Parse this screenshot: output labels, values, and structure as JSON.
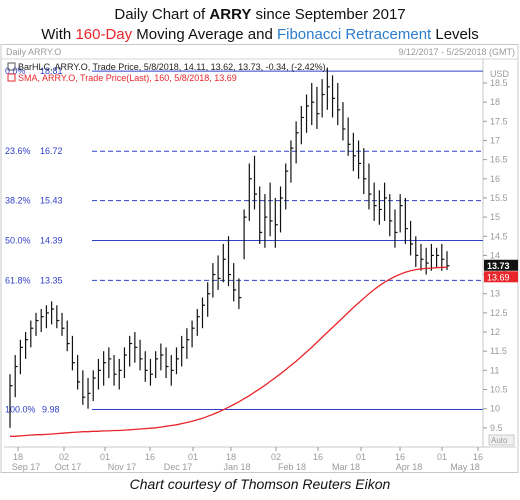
{
  "header": {
    "line1_pre": "Daily Chart of ",
    "line1_bold": "ARRY",
    "line1_post": " since September 2017",
    "line2_pre": "With ",
    "line2_red": "160-Day",
    "line2_mid": " Moving Average and ",
    "line2_blue": "Fibonacci Retracement",
    "line2_post": " Levels"
  },
  "panel": {
    "symbol_label": "Daily ARRY.O",
    "date_range": "9/12/2017 - 5/25/2018 (GMT)",
    "legend_bar": "BarHLC, ARRY.O, Trade Price, 5/8/2018, 14.11, 13.62, 13.73, -0.34, (-2.42%),",
    "legend_sma": "SMA, ARRY.O, Trade Price(Last), 160, 5/8/2018, 13.69",
    "currency": "USD",
    "auto_label": "Auto",
    "last_price_tag": "13.73",
    "sma_tag": "13.69"
  },
  "colors": {
    "price_bars": "#111111",
    "sma": "#e8262b",
    "fib": "#3040c8",
    "last_tag_bg": "#111111",
    "sma_tag_bg": "#e8262b",
    "title_red": "#e8262b",
    "title_blue": "#2a7ccc"
  },
  "caption": "Chart courtesy of Thomson Reuters Eikon",
  "chart_data": {
    "type": "line",
    "title": "Daily Chart of ARRY since September 2017",
    "y_ticks": [
      "9.5",
      "10",
      "10.5",
      "11",
      "11.5",
      "12",
      "12.5",
      "13",
      "13.5",
      "14",
      "14.5",
      "15",
      "15.5",
      "16",
      "16.5",
      "17",
      "17.5",
      "18",
      "18.5"
    ],
    "ylim": [
      9,
      19.1
    ],
    "x_day_labels": [
      "18",
      "02",
      "16",
      "01",
      "16",
      "01",
      "18",
      "02",
      "16",
      "01",
      "16",
      "01",
      "16",
      "01",
      "16"
    ],
    "x_month_labels": [
      "Sep 17",
      "Oct 17",
      "Nov 17",
      "Dec 17",
      "Jan 18",
      "Feb 18",
      "Mar 18",
      "Apr 18",
      "May 18"
    ],
    "fib_levels": [
      {
        "label": "0.0%",
        "value": 18.81,
        "value_label": "18.81",
        "style": "solid"
      },
      {
        "label": "23.6%",
        "value": 16.72,
        "value_label": "16.72",
        "style": "dashed"
      },
      {
        "label": "38.2%",
        "value": 15.43,
        "value_label": "15.43",
        "style": "dashed"
      },
      {
        "label": "50.0%",
        "value": 14.39,
        "value_label": "14.39",
        "style": "solid"
      },
      {
        "label": "61.8%",
        "value": 13.35,
        "value_label": "13.35",
        "style": "dashed"
      },
      {
        "label": "100.0%",
        "value": 9.98,
        "value_label": "9.98",
        "style": "solid"
      }
    ],
    "series": [
      {
        "name": "ARRY.O Trade Price",
        "kind": "hlc_bars",
        "points": [
          {
            "h": 10.9,
            "l": 9.5,
            "c": 10.6
          },
          {
            "h": 11.4,
            "l": 10.3,
            "c": 11.1
          },
          {
            "h": 11.8,
            "l": 10.9,
            "c": 11.6
          },
          {
            "h": 12.0,
            "l": 11.3,
            "c": 11.8
          },
          {
            "h": 12.3,
            "l": 11.6,
            "c": 12.1
          },
          {
            "h": 12.5,
            "l": 11.9,
            "c": 12.3
          },
          {
            "h": 12.6,
            "l": 12.0,
            "c": 12.4
          },
          {
            "h": 12.7,
            "l": 12.1,
            "c": 12.5
          },
          {
            "h": 12.8,
            "l": 12.2,
            "c": 12.6
          },
          {
            "h": 12.7,
            "l": 12.1,
            "c": 12.3
          },
          {
            "h": 12.5,
            "l": 11.9,
            "c": 12.1
          },
          {
            "h": 12.3,
            "l": 11.5,
            "c": 11.7
          },
          {
            "h": 11.9,
            "l": 11.0,
            "c": 11.2
          },
          {
            "h": 11.4,
            "l": 10.5,
            "c": 10.7
          },
          {
            "h": 11.0,
            "l": 10.1,
            "c": 10.3
          },
          {
            "h": 10.8,
            "l": 10.0,
            "c": 10.4
          },
          {
            "h": 11.0,
            "l": 10.2,
            "c": 10.8
          },
          {
            "h": 11.3,
            "l": 10.5,
            "c": 11.0
          },
          {
            "h": 11.5,
            "l": 10.6,
            "c": 11.2
          },
          {
            "h": 11.6,
            "l": 10.8,
            "c": 11.3
          },
          {
            "h": 11.4,
            "l": 10.6,
            "c": 10.9
          },
          {
            "h": 11.3,
            "l": 10.5,
            "c": 11.0
          },
          {
            "h": 11.6,
            "l": 10.8,
            "c": 11.4
          },
          {
            "h": 11.9,
            "l": 11.1,
            "c": 11.7
          },
          {
            "h": 12.0,
            "l": 11.2,
            "c": 11.6
          },
          {
            "h": 11.8,
            "l": 11.0,
            "c": 11.3
          },
          {
            "h": 11.5,
            "l": 10.7,
            "c": 11.0
          },
          {
            "h": 11.3,
            "l": 10.6,
            "c": 10.9
          },
          {
            "h": 11.5,
            "l": 10.8,
            "c": 11.3
          },
          {
            "h": 11.7,
            "l": 11.0,
            "c": 11.4
          },
          {
            "h": 11.6,
            "l": 10.8,
            "c": 11.1
          },
          {
            "h": 11.4,
            "l": 10.6,
            "c": 11.0
          },
          {
            "h": 11.6,
            "l": 10.9,
            "c": 11.3
          },
          {
            "h": 11.9,
            "l": 11.1,
            "c": 11.6
          },
          {
            "h": 12.1,
            "l": 11.3,
            "c": 11.8
          },
          {
            "h": 12.3,
            "l": 11.6,
            "c": 12.1
          },
          {
            "h": 12.6,
            "l": 11.9,
            "c": 12.4
          },
          {
            "h": 12.9,
            "l": 12.1,
            "c": 12.7
          },
          {
            "h": 13.3,
            "l": 12.4,
            "c": 13.0
          },
          {
            "h": 13.8,
            "l": 12.9,
            "c": 13.5
          },
          {
            "h": 14.0,
            "l": 13.1,
            "c": 13.4
          },
          {
            "h": 14.3,
            "l": 13.3,
            "c": 13.9
          },
          {
            "h": 14.5,
            "l": 13.2,
            "c": 13.5
          },
          {
            "h": 13.8,
            "l": 12.8,
            "c": 13.1
          },
          {
            "h": 13.4,
            "l": 12.6,
            "c": 12.9
          },
          {
            "h": 15.2,
            "l": 13.9,
            "c": 15.0
          },
          {
            "h": 16.4,
            "l": 14.9,
            "c": 16.0
          },
          {
            "h": 16.6,
            "l": 15.2,
            "c": 15.6
          },
          {
            "h": 15.8,
            "l": 14.3,
            "c": 14.6
          },
          {
            "h": 15.6,
            "l": 14.2,
            "c": 15.0
          },
          {
            "h": 15.9,
            "l": 14.5,
            "c": 14.9
          },
          {
            "h": 15.5,
            "l": 14.2,
            "c": 14.8
          },
          {
            "h": 15.8,
            "l": 14.6,
            "c": 15.5
          },
          {
            "h": 16.4,
            "l": 15.2,
            "c": 16.2
          },
          {
            "h": 17.0,
            "l": 15.9,
            "c": 16.8
          },
          {
            "h": 17.5,
            "l": 16.4,
            "c": 17.2
          },
          {
            "h": 17.9,
            "l": 16.9,
            "c": 17.6
          },
          {
            "h": 18.2,
            "l": 17.2,
            "c": 17.9
          },
          {
            "h": 18.5,
            "l": 17.4,
            "c": 18.0
          },
          {
            "h": 18.4,
            "l": 17.3,
            "c": 17.7
          },
          {
            "h": 18.6,
            "l": 17.6,
            "c": 18.2
          },
          {
            "h": 18.9,
            "l": 17.8,
            "c": 18.4
          },
          {
            "h": 18.7,
            "l": 17.6,
            "c": 18.1
          },
          {
            "h": 18.5,
            "l": 17.4,
            "c": 17.8
          },
          {
            "h": 18.0,
            "l": 17.0,
            "c": 17.3
          },
          {
            "h": 17.6,
            "l": 16.6,
            "c": 16.9
          },
          {
            "h": 17.2,
            "l": 16.2,
            "c": 16.6
          },
          {
            "h": 17.0,
            "l": 16.0,
            "c": 16.4
          },
          {
            "h": 16.8,
            "l": 15.6,
            "c": 16.0
          },
          {
            "h": 16.4,
            "l": 15.2,
            "c": 15.6
          },
          {
            "h": 15.9,
            "l": 14.9,
            "c": 15.3
          },
          {
            "h": 15.7,
            "l": 14.8,
            "c": 15.2
          },
          {
            "h": 15.9,
            "l": 14.9,
            "c": 15.5
          },
          {
            "h": 15.6,
            "l": 14.5,
            "c": 14.9
          },
          {
            "h": 15.2,
            "l": 14.2,
            "c": 14.6
          },
          {
            "h": 15.6,
            "l": 14.6,
            "c": 15.3
          },
          {
            "h": 15.5,
            "l": 14.3,
            "c": 14.7
          },
          {
            "h": 14.9,
            "l": 14.0,
            "c": 14.3
          },
          {
            "h": 14.5,
            "l": 13.7,
            "c": 14.0
          },
          {
            "h": 14.3,
            "l": 13.6,
            "c": 13.9
          },
          {
            "h": 14.2,
            "l": 13.5,
            "c": 13.8
          },
          {
            "h": 14.3,
            "l": 13.6,
            "c": 14.0
          },
          {
            "h": 14.2,
            "l": 13.7,
            "c": 14.0
          },
          {
            "h": 14.3,
            "l": 13.6,
            "c": 13.9
          },
          {
            "h": 14.11,
            "l": 13.62,
            "c": 13.73
          }
        ]
      },
      {
        "name": "SMA 160",
        "kind": "line",
        "values": [
          9.28,
          9.28,
          9.29,
          9.3,
          9.31,
          9.32,
          9.32,
          9.33,
          9.34,
          9.35,
          9.36,
          9.37,
          9.38,
          9.39,
          9.4,
          9.4,
          9.41,
          9.41,
          9.42,
          9.42,
          9.43,
          9.43,
          9.44,
          9.45,
          9.46,
          9.47,
          9.48,
          9.49,
          9.5,
          9.52,
          9.54,
          9.56,
          9.58,
          9.61,
          9.64,
          9.67,
          9.71,
          9.75,
          9.8,
          9.85,
          9.91,
          9.97,
          10.04,
          10.11,
          10.18,
          10.26,
          10.34,
          10.43,
          10.52,
          10.61,
          10.71,
          10.81,
          10.91,
          11.02,
          11.13,
          11.24,
          11.36,
          11.48,
          11.6,
          11.73,
          11.86,
          11.99,
          12.12,
          12.25,
          12.38,
          12.51,
          12.64,
          12.76,
          12.88,
          13.0,
          13.11,
          13.21,
          13.3,
          13.38,
          13.45,
          13.51,
          13.56,
          13.6,
          13.63,
          13.65,
          13.66,
          13.67,
          13.68,
          13.69,
          13.69
        ]
      }
    ]
  }
}
